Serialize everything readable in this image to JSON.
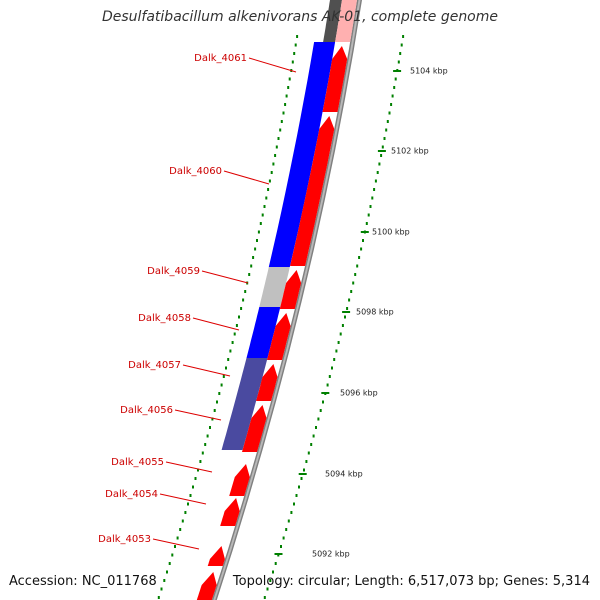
{
  "header": {
    "title": "Desulfatibacillum alkenivorans AK-01, complete genome"
  },
  "footer": {
    "accession": "Accession: NC_011768",
    "summary": "Topology: circular; Length: 6,517,073 bp; Genes: 5,314"
  },
  "colors": {
    "forward_gene": "#ff0000",
    "reverse_gene": "#0000ff",
    "reverse_gene_dim": "#4a4aa0",
    "gray_gene": "#c0c0c0",
    "backbone": "#808080",
    "label_text": "#cc0000",
    "leader_line": "#dd0000",
    "ruler_dot": "#008000",
    "scale_text": "#222222"
  },
  "genes": [
    {
      "name": "Dalk_4061"
    },
    {
      "name": "Dalk_4060"
    },
    {
      "name": "Dalk_4059"
    },
    {
      "name": "Dalk_4058"
    },
    {
      "name": "Dalk_4057"
    },
    {
      "name": "Dalk_4056"
    },
    {
      "name": "Dalk_4055"
    },
    {
      "name": "Dalk_4054"
    },
    {
      "name": "Dalk_4053"
    }
  ],
  "scale": [
    {
      "label": "5104 kbp"
    },
    {
      "label": "5102 kbp"
    },
    {
      "label": "5100 kbp"
    },
    {
      "label": "5098 kbp"
    },
    {
      "label": "5096 kbp"
    },
    {
      "label": "5094 kbp"
    },
    {
      "label": "5092 kbp"
    }
  ]
}
